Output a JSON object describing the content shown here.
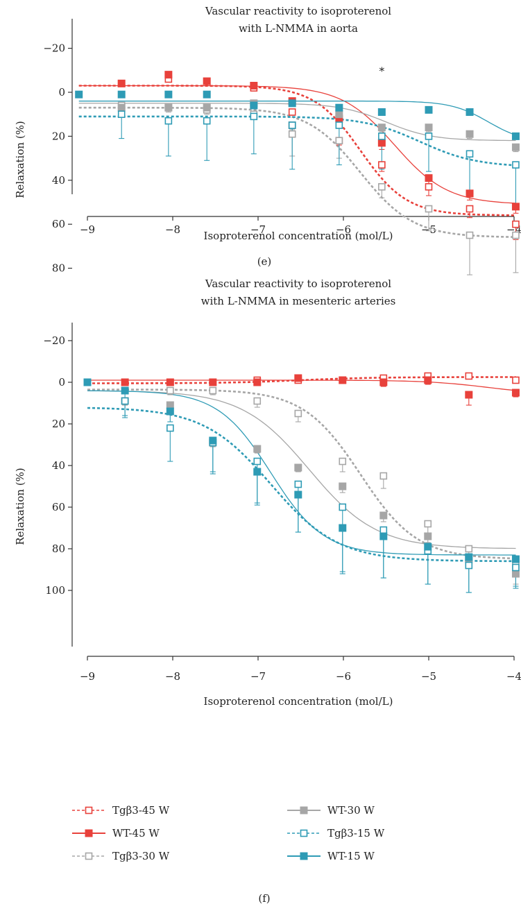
{
  "figure": {
    "panels": [
      "(e)",
      "(f)"
    ]
  },
  "chart_data": [
    {
      "type": "line",
      "panel_label": "(e)",
      "title_lines": [
        "Vascular reactivity to isoproterenol",
        "with L-NMMA in aorta"
      ],
      "xlabel": "Isoproterenol concentration (mol/L)",
      "ylabel": "Relaxation (%)",
      "xlim": [
        -9.1,
        -4
      ],
      "ylim": [
        -30,
        90
      ],
      "y_inverted": true,
      "xticks": [
        -9,
        -8,
        -7,
        -6,
        -5,
        -4
      ],
      "xtick_labels": [
        "−9",
        "−8",
        "−7",
        "−6",
        "−5",
        "−4"
      ],
      "yticks": [
        -20,
        0,
        20,
        40,
        60,
        80
      ],
      "ytick_labels": [
        "−20",
        "0",
        "20",
        "40",
        "60",
        "80"
      ],
      "annotations": [
        {
          "text": "*",
          "x": -5.55,
          "y": -8
        }
      ],
      "x": [
        -9.1,
        -8.6,
        -8.05,
        -7.6,
        -7.05,
        -6.6,
        -6.05,
        -5.55,
        -5.0,
        -4.52,
        -3.98
      ],
      "series": [
        {
          "name": "Tgβ3-45 W",
          "color": "#e8413b",
          "filled": false,
          "dashed": true,
          "values": [
            null,
            -4,
            -6,
            -5,
            -2,
            9,
            22,
            33,
            43,
            53,
            60
          ],
          "errors": [
            null,
            1,
            1,
            1,
            1,
            1,
            2,
            3,
            4,
            4,
            7
          ],
          "fit": [
            -3,
            1.6,
            -5.8,
            56
          ]
        },
        {
          "name": "WT-45 W",
          "color": "#e8413b",
          "filled": true,
          "dashed": false,
          "values": [
            null,
            -4,
            -8,
            -5,
            -3,
            4,
            12,
            23,
            39,
            46,
            52
          ],
          "errors": [
            null,
            1,
            1,
            1,
            1,
            1,
            2,
            3,
            3,
            3,
            3
          ],
          "fit": [
            -3,
            1.4,
            -5.4,
            51
          ]
        },
        {
          "name": "Tgβ3-30 W",
          "color": "#a6a6a6",
          "filled": false,
          "dashed": true,
          "values": [
            null,
            6,
            7,
            8,
            10,
            19,
            22,
            43,
            53,
            65,
            65
          ],
          "errors": [
            null,
            2,
            2,
            2,
            2,
            10,
            8,
            5,
            10,
            18,
            17
          ],
          "fit": [
            7,
            1.4,
            -5.8,
            66
          ]
        },
        {
          "name": "WT-30 W",
          "color": "#a6a6a6",
          "filled": true,
          "dashed": false,
          "values": [
            null,
            7,
            7,
            7,
            5,
            15,
            10,
            16,
            16,
            19,
            25
          ],
          "errors": [
            null,
            1,
            1,
            1,
            1,
            2,
            2,
            2,
            2,
            2,
            2
          ],
          "fit": [
            5,
            1.6,
            -5.5,
            22
          ]
        },
        {
          "name": "Tgβ3-15 W",
          "color": "#2e9bb5",
          "filled": false,
          "dashed": true,
          "values": [
            null,
            10,
            13,
            13,
            11,
            15,
            15,
            20,
            20,
            28,
            33
          ],
          "errors": [
            null,
            11,
            16,
            18,
            17,
            20,
            18,
            15,
            16,
            17,
            18
          ],
          "fit": [
            11,
            1.3,
            -5.1,
            34
          ]
        },
        {
          "name": "WT-15 W",
          "color": "#2e9bb5",
          "filled": true,
          "dashed": false,
          "values": [
            1,
            1,
            1,
            1,
            6,
            5,
            7,
            9,
            8,
            9,
            20
          ],
          "errors": [
            null,
            1,
            1,
            1,
            1,
            1,
            1,
            1,
            1,
            1,
            1
          ],
          "fit": [
            4,
            2.0,
            -4.3,
            23
          ]
        }
      ]
    },
    {
      "type": "line",
      "panel_label": "(f)",
      "title_lines": [
        "Vascular reactivity to isoproterenol",
        "with L-NMMA in mesenteric arteries"
      ],
      "xlabel": "Isoproterenol concentration (mol/L)",
      "ylabel": "Relaxation (%)",
      "xlim": [
        -9.1,
        -4
      ],
      "ylim": [
        -30,
        105
      ],
      "y_inverted": true,
      "xticks": [
        -9,
        -8,
        -7,
        -6,
        -5,
        -4
      ],
      "xtick_labels": [
        "−9",
        "−8",
        "−7",
        "−6",
        "−5",
        "−4"
      ],
      "yticks": [
        -20,
        0,
        20,
        40,
        60,
        80,
        100
      ],
      "ytick_labels": [
        "−20",
        "0",
        "20",
        "40",
        "60",
        "80",
        "100"
      ],
      "x": [
        -9.0,
        -8.56,
        -8.03,
        -7.53,
        -7.01,
        -6.53,
        -6.01,
        -5.53,
        -5.01,
        -4.53,
        -3.98
      ],
      "series": [
        {
          "name": "Tgβ3-45 W",
          "color": "#e8413b",
          "filled": false,
          "dashed": true,
          "values": [
            null,
            0,
            0,
            0,
            -1,
            -1,
            -1,
            -2,
            -3,
            -3,
            -1
          ],
          "errors": [
            null,
            1,
            1,
            1,
            1,
            1,
            1,
            1,
            1,
            1,
            1
          ],
          "fit": [
            0.5,
            1.0,
            -6.5,
            -2.5
          ]
        },
        {
          "name": "WT-45 W",
          "color": "#e8413b",
          "filled": true,
          "dashed": false,
          "values": [
            null,
            0,
            0,
            0,
            0,
            -2,
            -1,
            0,
            -1,
            6,
            5
          ],
          "errors": [
            null,
            1,
            1,
            1,
            1,
            1,
            1,
            2,
            2,
            5,
            2
          ],
          "fit": [
            -1,
            1.2,
            -4.3,
            6
          ]
        },
        {
          "name": "Tgβ3-30 W",
          "color": "#a6a6a6",
          "filled": false,
          "dashed": true,
          "values": [
            null,
            null,
            4,
            4,
            9,
            15,
            38,
            45,
            68,
            80,
            88
          ],
          "errors": [
            null,
            null,
            2,
            2,
            3,
            4,
            5,
            6,
            5,
            3,
            3
          ],
          "fit": [
            3.5,
            1.3,
            -5.8,
            85
          ]
        },
        {
          "name": "WT-30 W",
          "color": "#a6a6a6",
          "filled": true,
          "dashed": false,
          "values": [
            null,
            9,
            11,
            29,
            32,
            41,
            50,
            64,
            74,
            85,
            92
          ],
          "errors": [
            null,
            2,
            2,
            2,
            2,
            2,
            3,
            3,
            3,
            3,
            5
          ],
          "fit": [
            4,
            1.1,
            -6.4,
            80
          ]
        },
        {
          "name": "Tgβ3-15 W",
          "color": "#2e9bb5",
          "filled": false,
          "dashed": true,
          "values": [
            null,
            9,
            22,
            29,
            38,
            49,
            60,
            71,
            81,
            88,
            89
          ],
          "errors": [
            null,
            8,
            16,
            14,
            20,
            23,
            32,
            23,
            16,
            13,
            9
          ],
          "fit": [
            12,
            1.1,
            -6.85,
            86
          ]
        },
        {
          "name": "WT-15 W",
          "color": "#2e9bb5",
          "filled": true,
          "dashed": false,
          "values": [
            0,
            4,
            14,
            28,
            43,
            54,
            70,
            74,
            79,
            84,
            85
          ],
          "errors": [
            null,
            12,
            5,
            16,
            16,
            18,
            21,
            20,
            18,
            17,
            14
          ],
          "fit": [
            4,
            1.4,
            -6.85,
            83
          ]
        }
      ]
    }
  ],
  "legend": {
    "placement": "bottom",
    "items": [
      {
        "label": "Tgβ3-45 W",
        "series_index": 0
      },
      {
        "label": "WT-30 W",
        "series_index": 3
      },
      {
        "label": "WT-45 W",
        "series_index": 1
      },
      {
        "label": "Tgβ3-15 W",
        "series_index": 4
      },
      {
        "label": "Tgβ3-30 W",
        "series_index": 2
      },
      {
        "label": "WT-15 W",
        "series_index": 5
      }
    ]
  }
}
